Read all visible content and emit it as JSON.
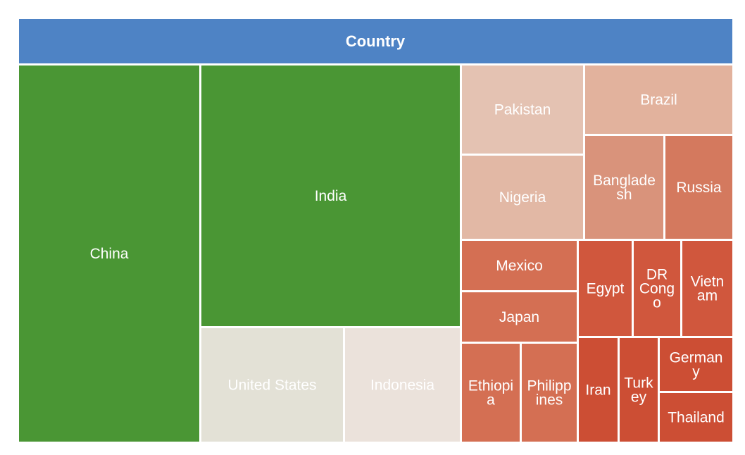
{
  "chart_data": {
    "type": "treemap",
    "title": "Country",
    "header_color": "#4e83c5",
    "items": [
      {
        "name": "China",
        "lines": [
          "China"
        ],
        "color": "#4a9634"
      },
      {
        "name": "India",
        "lines": [
          "India"
        ],
        "color": "#4a9634"
      },
      {
        "name": "United States",
        "lines": [
          "United States"
        ],
        "color": "#e3e1d6"
      },
      {
        "name": "Indonesia",
        "lines": [
          "Indonesia"
        ],
        "color": "#ebe2db"
      },
      {
        "name": "Pakistan",
        "lines": [
          "Pakistan"
        ],
        "color": "#e4c2b2"
      },
      {
        "name": "Nigeria",
        "lines": [
          "Nigeria"
        ],
        "color": "#e2b8a5"
      },
      {
        "name": "Brazil",
        "lines": [
          "Brazil"
        ],
        "color": "#e2b29d"
      },
      {
        "name": "Bangladesh",
        "lines": [
          "Banglade",
          "sh"
        ],
        "color": "#d9937b"
      },
      {
        "name": "Russia",
        "lines": [
          "Russia"
        ],
        "color": "#d4795e"
      },
      {
        "name": "Mexico",
        "lines": [
          "Mexico"
        ],
        "color": "#d46f53"
      },
      {
        "name": "Japan",
        "lines": [
          "Japan"
        ],
        "color": "#d46f53"
      },
      {
        "name": "Ethiopia",
        "lines": [
          "Ethiopi",
          "a"
        ],
        "color": "#d46f53"
      },
      {
        "name": "Philippines",
        "lines": [
          "Philipp",
          "ines"
        ],
        "color": "#d46f53"
      },
      {
        "name": "Egypt",
        "lines": [
          "Egypt"
        ],
        "color": "#d0573d"
      },
      {
        "name": "DR Congo",
        "lines": [
          "DR",
          "Cong",
          "o"
        ],
        "color": "#d0573d"
      },
      {
        "name": "Vietnam",
        "lines": [
          "Vietn",
          "am"
        ],
        "color": "#d0573d"
      },
      {
        "name": "Iran",
        "lines": [
          "Iran"
        ],
        "color": "#cc4e34"
      },
      {
        "name": "Turkey",
        "lines": [
          "Turk",
          "ey"
        ],
        "color": "#cc4e34"
      },
      {
        "name": "Germany",
        "lines": [
          "German",
          "y"
        ],
        "color": "#cc4e34"
      },
      {
        "name": "Thailand",
        "lines": [
          "Thailand"
        ],
        "color": "#cc4e34"
      }
    ]
  }
}
